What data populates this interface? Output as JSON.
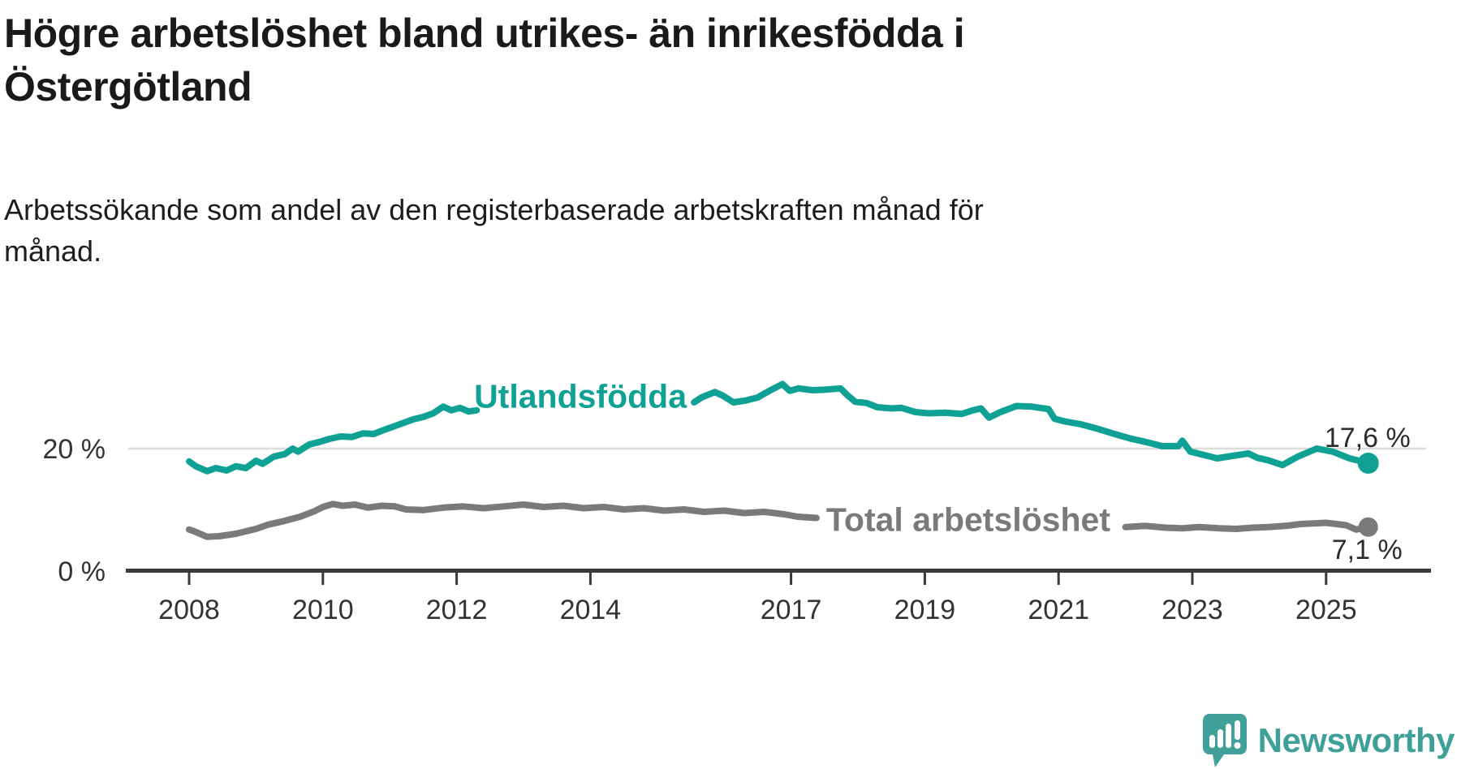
{
  "title": {
    "line1": "Högre arbetslöshet bland utrikes- än inrikesfödda i",
    "line2": "Östergötland"
  },
  "subtitle": {
    "line1": "Arbetssökande som andel av den registerbaserade arbetskraften månad för",
    "line2": "månad."
  },
  "branding": {
    "logo_name": "Newsworthy",
    "logo_color": "#42a09a"
  },
  "chart_data": {
    "type": "line",
    "unit": "%",
    "x_ticks": [
      2008,
      2010,
      2012,
      2014,
      2017,
      2019,
      2021,
      2023,
      2025
    ],
    "y_ticks": [
      {
        "value": 0,
        "label": "0 %"
      },
      {
        "value": 20,
        "label": "20 %"
      }
    ],
    "xlim": [
      2007.7,
      2026.2
    ],
    "ylim": [
      0,
      33
    ],
    "grid": "horizontal line at 20% only",
    "legend": "inline series labels",
    "axis_color": "#3a3a3a",
    "grid_color": "#dcdcdc",
    "tick_label_color": "#333333",
    "end_label_color": "#2b2b2b",
    "series": [
      {
        "name": "Utlandsfödda",
        "color": "#0fa294",
        "end_value": 17.6,
        "end_label": "17,6 %",
        "label_pos": {
          "x": 2013.85,
          "y": 28.6
        },
        "segments": [
          [
            [
              2008.0,
              17.9
            ],
            [
              2008.1,
              17.1
            ],
            [
              2008.27,
              16.3
            ],
            [
              2008.4,
              16.8
            ],
            [
              2008.56,
              16.4
            ],
            [
              2008.7,
              17.1
            ],
            [
              2008.85,
              16.8
            ],
            [
              2009.0,
              18.0
            ],
            [
              2009.1,
              17.5
            ],
            [
              2009.27,
              18.7
            ],
            [
              2009.43,
              19.1
            ],
            [
              2009.55,
              20.0
            ],
            [
              2009.63,
              19.5
            ],
            [
              2009.8,
              20.7
            ],
            [
              2009.95,
              21.1
            ],
            [
              2010.1,
              21.6
            ],
            [
              2010.27,
              22.0
            ],
            [
              2010.43,
              21.9
            ],
            [
              2010.6,
              22.5
            ],
            [
              2010.76,
              22.4
            ],
            [
              2010.92,
              23.1
            ],
            [
              2011.05,
              23.6
            ],
            [
              2011.2,
              24.2
            ],
            [
              2011.35,
              24.8
            ],
            [
              2011.5,
              25.2
            ],
            [
              2011.65,
              25.8
            ],
            [
              2011.8,
              26.9
            ],
            [
              2011.92,
              26.3
            ],
            [
              2012.05,
              26.7
            ],
            [
              2012.18,
              26.1
            ],
            [
              2012.3,
              26.3
            ]
          ],
          [
            [
              2015.55,
              27.6
            ],
            [
              2015.66,
              28.4
            ],
            [
              2015.86,
              29.3
            ],
            [
              2015.98,
              28.7
            ],
            [
              2016.14,
              27.6
            ],
            [
              2016.32,
              27.9
            ],
            [
              2016.5,
              28.4
            ],
            [
              2016.71,
              29.7
            ],
            [
              2016.87,
              30.6
            ],
            [
              2016.98,
              29.5
            ],
            [
              2017.11,
              29.9
            ],
            [
              2017.32,
              29.6
            ],
            [
              2017.52,
              29.7
            ],
            [
              2017.74,
              29.9
            ],
            [
              2017.84,
              28.8
            ],
            [
              2017.96,
              27.7
            ],
            [
              2018.13,
              27.5
            ],
            [
              2018.29,
              26.8
            ],
            [
              2018.5,
              26.6
            ],
            [
              2018.65,
              26.7
            ],
            [
              2018.86,
              26.0
            ],
            [
              2019.06,
              25.8
            ],
            [
              2019.3,
              25.9
            ],
            [
              2019.55,
              25.7
            ],
            [
              2019.72,
              26.3
            ],
            [
              2019.84,
              26.6
            ],
            [
              2019.96,
              25.1
            ],
            [
              2020.13,
              26.0
            ],
            [
              2020.37,
              27.0
            ],
            [
              2020.6,
              26.9
            ],
            [
              2020.85,
              26.5
            ],
            [
              2020.94,
              24.9
            ],
            [
              2021.08,
              24.5
            ],
            [
              2021.33,
              24.0
            ],
            [
              2021.57,
              23.3
            ],
            [
              2021.81,
              22.5
            ],
            [
              2022.06,
              21.7
            ],
            [
              2022.3,
              21.1
            ],
            [
              2022.55,
              20.4
            ],
            [
              2022.79,
              20.4
            ],
            [
              2022.85,
              21.3
            ],
            [
              2022.97,
              19.5
            ],
            [
              2023.19,
              18.9
            ],
            [
              2023.37,
              18.4
            ],
            [
              2023.6,
              18.8
            ],
            [
              2023.84,
              19.2
            ],
            [
              2023.97,
              18.5
            ],
            [
              2024.13,
              18.1
            ],
            [
              2024.35,
              17.3
            ],
            [
              2024.58,
              18.7
            ],
            [
              2024.86,
              20.0
            ],
            [
              2025.1,
              19.5
            ],
            [
              2025.35,
              18.4
            ],
            [
              2025.63,
              17.6
            ]
          ]
        ]
      },
      {
        "name": "Total arbetslöshet",
        "color": "#7a7a7a",
        "end_value": 7.1,
        "end_label": "7,1 %",
        "label_pos": {
          "x": 2019.65,
          "y": 8.35
        },
        "segments": [
          [
            [
              2008.0,
              6.7
            ],
            [
              2008.1,
              6.3
            ],
            [
              2008.27,
              5.5
            ],
            [
              2008.45,
              5.6
            ],
            [
              2008.7,
              6.0
            ],
            [
              2009.0,
              6.8
            ],
            [
              2009.18,
              7.5
            ],
            [
              2009.42,
              8.1
            ],
            [
              2009.66,
              8.8
            ],
            [
              2009.87,
              9.7
            ],
            [
              2010.0,
              10.4
            ],
            [
              2010.15,
              10.9
            ],
            [
              2010.3,
              10.6
            ],
            [
              2010.48,
              10.8
            ],
            [
              2010.67,
              10.3
            ],
            [
              2010.88,
              10.6
            ],
            [
              2011.08,
              10.5
            ],
            [
              2011.24,
              10.0
            ],
            [
              2011.5,
              9.9
            ],
            [
              2011.8,
              10.3
            ],
            [
              2012.1,
              10.5
            ],
            [
              2012.4,
              10.2
            ],
            [
              2012.7,
              10.5
            ],
            [
              2013.0,
              10.8
            ],
            [
              2013.3,
              10.4
            ],
            [
              2013.6,
              10.6
            ],
            [
              2013.9,
              10.2
            ],
            [
              2014.2,
              10.4
            ],
            [
              2014.5,
              10.0
            ],
            [
              2014.8,
              10.2
            ],
            [
              2015.1,
              9.8
            ],
            [
              2015.4,
              10.0
            ],
            [
              2015.7,
              9.6
            ],
            [
              2016.0,
              9.8
            ],
            [
              2016.3,
              9.4
            ],
            [
              2016.6,
              9.6
            ],
            [
              2016.9,
              9.2
            ],
            [
              2017.1,
              8.8
            ],
            [
              2017.38,
              8.6
            ]
          ],
          [
            [
              2022.0,
              7.1
            ],
            [
              2022.3,
              7.3
            ],
            [
              2022.6,
              7.0
            ],
            [
              2022.85,
              6.9
            ],
            [
              2023.1,
              7.1
            ],
            [
              2023.4,
              6.9
            ],
            [
              2023.65,
              6.8
            ],
            [
              2023.9,
              7.0
            ],
            [
              2024.13,
              7.1
            ],
            [
              2024.4,
              7.3
            ],
            [
              2024.62,
              7.6
            ],
            [
              2025.0,
              7.8
            ],
            [
              2025.3,
              7.4
            ],
            [
              2025.45,
              6.7
            ],
            [
              2025.63,
              7.1
            ]
          ]
        ]
      }
    ]
  }
}
